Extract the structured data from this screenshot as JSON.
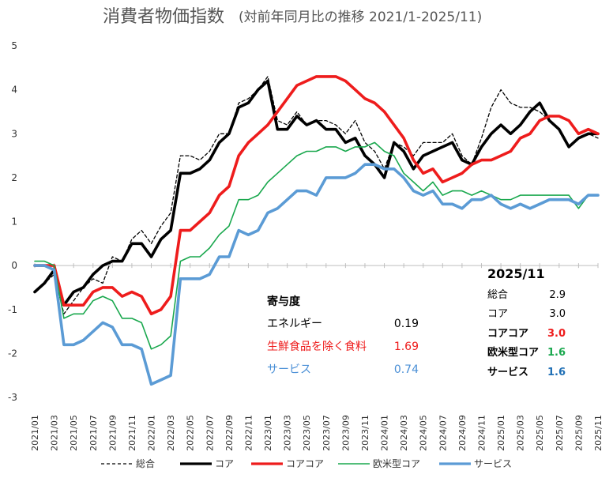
{
  "chart_data": {
    "type": "line",
    "title": "消費者物価指数",
    "subtitle": "(対前年同月比の推移 2021/1-2025/11)",
    "ylim": [
      -3,
      5
    ],
    "yticks": [
      "5",
      "4",
      "3",
      "2",
      "1",
      "0",
      "-1",
      "-2",
      "-3"
    ],
    "x": [
      "2021/01",
      "2021/02",
      "2021/03",
      "2021/04",
      "2021/05",
      "2021/06",
      "2021/07",
      "2021/08",
      "2021/09",
      "2021/10",
      "2021/11",
      "2021/12",
      "2022/01",
      "2022/02",
      "2022/03",
      "2022/04",
      "2022/05",
      "2022/06",
      "2022/07",
      "2022/08",
      "2022/09",
      "2022/10",
      "2022/11",
      "2022/12",
      "2023/01",
      "2023/02",
      "2023/03",
      "2023/04",
      "2023/05",
      "2023/06",
      "2023/07",
      "2023/08",
      "2023/09",
      "2023/10",
      "2023/11",
      "2023/12",
      "2024/01",
      "2024/02",
      "2024/03",
      "2024/04",
      "2024/05",
      "2024/06",
      "2024/07",
      "2024/08",
      "2024/09",
      "2024/10",
      "2024/11",
      "2024/12",
      "2025/01",
      "2025/02",
      "2025/03",
      "2025/04",
      "2025/05",
      "2025/06",
      "2025/07",
      "2025/08",
      "2025/09",
      "2025/10",
      "2025/11"
    ],
    "xtick_labels": [
      "2021/01",
      "2021/03",
      "2021/05",
      "2021/07",
      "2021/09",
      "2021/11",
      "2022/01",
      "2022/03",
      "2022/05",
      "2022/07",
      "2022/09",
      "2022/11",
      "2023/01",
      "2023/03",
      "2023/05",
      "2023/07",
      "2023/09",
      "2023/11",
      "2024/01",
      "2024/03",
      "2024/05",
      "2024/07",
      "2024/09",
      "2024/11",
      "2025/01",
      "2025/03",
      "2025/05",
      "2025/07",
      "2025/09",
      "2025/11"
    ],
    "grid": false,
    "legend_position": "bottom",
    "series": [
      {
        "name": "総合",
        "color": "#000000",
        "style": "dashed",
        "values": [
          -0.6,
          -0.4,
          -0.2,
          -1.1,
          -0.8,
          -0.5,
          -0.3,
          -0.4,
          0.2,
          0.1,
          0.6,
          0.8,
          0.5,
          0.9,
          1.2,
          2.5,
          2.5,
          2.4,
          2.6,
          3.0,
          3.0,
          3.7,
          3.8,
          4.0,
          4.3,
          3.3,
          3.2,
          3.5,
          3.2,
          3.3,
          3.3,
          3.2,
          3.0,
          3.3,
          2.8,
          2.6,
          2.2,
          2.8,
          2.7,
          2.5,
          2.8,
          2.8,
          2.8,
          3.0,
          2.5,
          2.3,
          2.9,
          3.6,
          4.0,
          3.7,
          3.6,
          3.6,
          3.5,
          3.3,
          3.1,
          2.7,
          2.9,
          3.0,
          2.9
        ]
      },
      {
        "name": "コア",
        "color": "#000000",
        "style": "solid-thick",
        "values": [
          -0.6,
          -0.4,
          -0.1,
          -0.9,
          -0.6,
          -0.5,
          -0.2,
          0.0,
          0.1,
          0.1,
          0.5,
          0.5,
          0.2,
          0.6,
          0.8,
          2.1,
          2.1,
          2.2,
          2.4,
          2.8,
          3.0,
          3.6,
          3.7,
          4.0,
          4.2,
          3.1,
          3.1,
          3.4,
          3.2,
          3.3,
          3.1,
          3.1,
          2.8,
          2.9,
          2.5,
          2.3,
          2.0,
          2.8,
          2.6,
          2.2,
          2.5,
          2.6,
          2.7,
          2.8,
          2.4,
          2.3,
          2.7,
          3.0,
          3.2,
          3.0,
          3.2,
          3.5,
          3.7,
          3.3,
          3.1,
          2.7,
          2.9,
          3.0,
          3.0
        ]
      },
      {
        "name": "コアコア",
        "color": "#ee1c1c",
        "style": "solid-thick",
        "values": [
          0.0,
          0.0,
          0.0,
          -0.9,
          -0.9,
          -0.9,
          -0.6,
          -0.5,
          -0.5,
          -0.7,
          -0.6,
          -0.7,
          -1.1,
          -1.0,
          -0.7,
          0.8,
          0.8,
          1.0,
          1.2,
          1.6,
          1.8,
          2.5,
          2.8,
          3.0,
          3.2,
          3.5,
          3.8,
          4.1,
          4.2,
          4.3,
          4.3,
          4.3,
          4.2,
          4.0,
          3.8,
          3.7,
          3.5,
          3.2,
          2.9,
          2.4,
          2.1,
          2.2,
          1.9,
          2.0,
          2.1,
          2.3,
          2.4,
          2.4,
          2.5,
          2.6,
          2.9,
          3.0,
          3.3,
          3.4,
          3.4,
          3.3,
          3.0,
          3.1,
          3.0
        ]
      },
      {
        "name": "欧米型コア",
        "color": "#1aa84e",
        "style": "solid-thin",
        "values": [
          0.1,
          0.1,
          0.0,
          -1.2,
          -1.1,
          -1.1,
          -0.8,
          -0.7,
          -0.8,
          -1.2,
          -1.2,
          -1.3,
          -1.9,
          -1.8,
          -1.6,
          0.1,
          0.2,
          0.2,
          0.4,
          0.7,
          0.9,
          1.5,
          1.5,
          1.6,
          1.9,
          2.1,
          2.3,
          2.5,
          2.6,
          2.6,
          2.7,
          2.7,
          2.6,
          2.7,
          2.7,
          2.8,
          2.6,
          2.5,
          2.1,
          1.9,
          1.7,
          1.9,
          1.6,
          1.7,
          1.7,
          1.6,
          1.7,
          1.6,
          1.5,
          1.5,
          1.6,
          1.6,
          1.6,
          1.6,
          1.6,
          1.6,
          1.3,
          1.6,
          1.6
        ]
      },
      {
        "name": "サービス",
        "color": "#5b9bd5",
        "style": "solid-thick",
        "values": [
          0.0,
          0.0,
          -0.1,
          -1.8,
          -1.8,
          -1.7,
          -1.5,
          -1.3,
          -1.4,
          -1.8,
          -1.8,
          -1.9,
          -2.7,
          -2.6,
          -2.5,
          -0.3,
          -0.3,
          -0.3,
          -0.2,
          0.2,
          0.2,
          0.8,
          0.7,
          0.8,
          1.2,
          1.3,
          1.5,
          1.7,
          1.7,
          1.6,
          2.0,
          2.0,
          2.0,
          2.1,
          2.3,
          2.3,
          2.2,
          2.2,
          2.0,
          1.7,
          1.6,
          1.7,
          1.4,
          1.4,
          1.3,
          1.5,
          1.5,
          1.6,
          1.4,
          1.3,
          1.4,
          1.3,
          1.4,
          1.5,
          1.5,
          1.5,
          1.4,
          1.6,
          1.6
        ]
      }
    ]
  },
  "annotations": {
    "contribution": {
      "title": "寄与度",
      "rows": [
        {
          "label": "エネルギー",
          "value": "0.19",
          "color": "#000000"
        },
        {
          "label": "生鮮食品を除く食料",
          "value": "1.69",
          "color": "#ee1c1c"
        },
        {
          "label": "サービス",
          "value": "0.74",
          "color": "#4a8fd6"
        }
      ]
    },
    "latest": {
      "title": "2025/11",
      "rows": [
        {
          "label": "総合",
          "value": "2.9",
          "bold": false,
          "color": "#000000"
        },
        {
          "label": "コア",
          "value": "3.0",
          "bold": false,
          "color": "#000000"
        },
        {
          "label": "コアコア",
          "value": "3.0",
          "bold": true,
          "color": "#ee1c1c"
        },
        {
          "label": "欧米型コア",
          "value": "1.6",
          "bold": true,
          "color": "#1aa84e"
        },
        {
          "label": "サービス",
          "value": "1.6",
          "bold": true,
          "color": "#1f6fb5"
        }
      ]
    }
  }
}
